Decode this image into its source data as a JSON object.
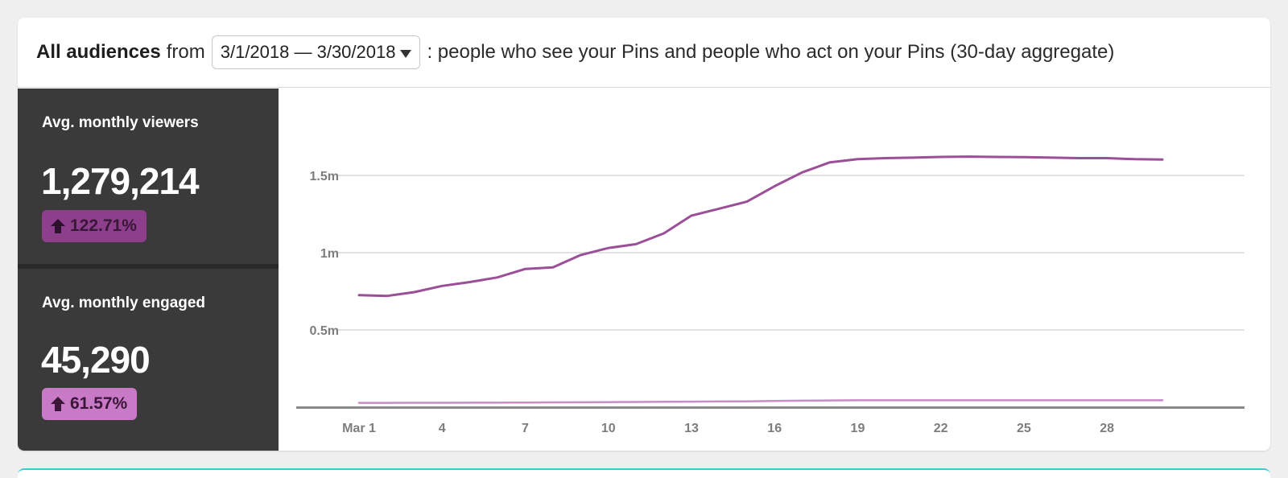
{
  "header": {
    "prefix_bold": "All audiences",
    "from_text": "from",
    "date_range": "3/1/2018 — 3/30/2018",
    "description": ": people who see your Pins and people who act on your Pins (30-day aggregate)"
  },
  "metrics": [
    {
      "label": "Avg. monthly viewers",
      "value": "1,279,214",
      "change": "122.71%",
      "badge_color": "#8d3f8b"
    },
    {
      "label": "Avg. monthly engaged",
      "value": "45,290",
      "change": "61.57%",
      "badge_color": "#c87ac6"
    }
  ],
  "colors": {
    "sidebar_bg": "#3a3a3a",
    "viewers_line": "#9b4f98",
    "engaged_line": "#c98bc8",
    "grid": "#e3e3e3",
    "axis": "#8a8a8a",
    "tick_text": "#7d7d7d"
  },
  "chart_data": {
    "type": "line",
    "title": "",
    "xlabel": "",
    "ylabel": "",
    "ylim": [
      0,
      1800000
    ],
    "x": [
      1,
      2,
      3,
      4,
      5,
      6,
      7,
      8,
      9,
      10,
      11,
      12,
      13,
      14,
      15,
      16,
      17,
      18,
      19,
      20,
      21,
      22,
      23,
      24,
      25,
      26,
      27,
      28,
      29,
      30
    ],
    "y_ticks": [
      {
        "value": 500000,
        "label": "0.5m"
      },
      {
        "value": 1000000,
        "label": "1m"
      },
      {
        "value": 1500000,
        "label": "1.5m"
      }
    ],
    "x_ticks": [
      {
        "value": 1,
        "label": "Mar 1"
      },
      {
        "value": 4,
        "label": "4"
      },
      {
        "value": 7,
        "label": "7"
      },
      {
        "value": 10,
        "label": "10"
      },
      {
        "value": 13,
        "label": "13"
      },
      {
        "value": 16,
        "label": "16"
      },
      {
        "value": 19,
        "label": "19"
      },
      {
        "value": 22,
        "label": "22"
      },
      {
        "value": 25,
        "label": "25"
      },
      {
        "value": 28,
        "label": "28"
      }
    ],
    "series": [
      {
        "name": "Avg. monthly viewers",
        "values": [
          725000,
          720000,
          745000,
          785000,
          810000,
          840000,
          895000,
          905000,
          985000,
          1030000,
          1055000,
          1125000,
          1240000,
          1285000,
          1330000,
          1430000,
          1520000,
          1585000,
          1605000,
          1612000,
          1615000,
          1620000,
          1622000,
          1620000,
          1618000,
          1615000,
          1612000,
          1612000,
          1605000,
          1603000
        ]
      },
      {
        "name": "Avg. monthly engaged",
        "values": [
          28000,
          28000,
          28500,
          28500,
          29000,
          29000,
          30000,
          31000,
          32000,
          33000,
          34000,
          35000,
          36000,
          37000,
          38000,
          40000,
          42000,
          44000,
          45000,
          45000,
          45000,
          45000,
          45000,
          45000,
          45000,
          45000,
          45000,
          45000,
          45000,
          45000
        ]
      }
    ]
  }
}
